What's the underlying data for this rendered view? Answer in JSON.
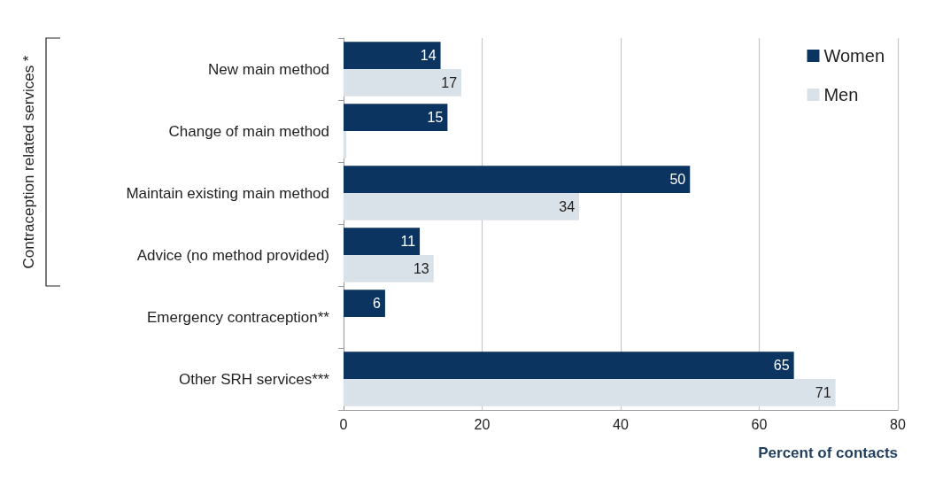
{
  "chart_data": {
    "type": "bar",
    "orientation": "horizontal",
    "xlabel": "Percent of contacts",
    "annotations": [
      "Contraception related services *"
    ],
    "categories": [
      "New main method",
      "Change of main method",
      "Maintain existing main method",
      "Advice (no method provided)",
      "Emergency contraception**",
      "Other SRH services***"
    ],
    "series": [
      {
        "name": "Women",
        "color": "#0b3460",
        "values": [
          14,
          15,
          50,
          11,
          6,
          65
        ],
        "value_labels": [
          "14",
          "15",
          "50",
          "11",
          "6",
          "65"
        ]
      },
      {
        "name": "Men",
        "color": "#d9e1e9",
        "values": [
          17,
          0.4,
          34,
          13,
          null,
          71
        ],
        "value_labels": [
          "17",
          null,
          "34",
          "13",
          null,
          "71"
        ]
      }
    ],
    "xlim": [
      0,
      80
    ],
    "xticks": [
      0,
      20,
      40,
      60,
      80
    ],
    "grid": "x",
    "legend": "top right"
  }
}
